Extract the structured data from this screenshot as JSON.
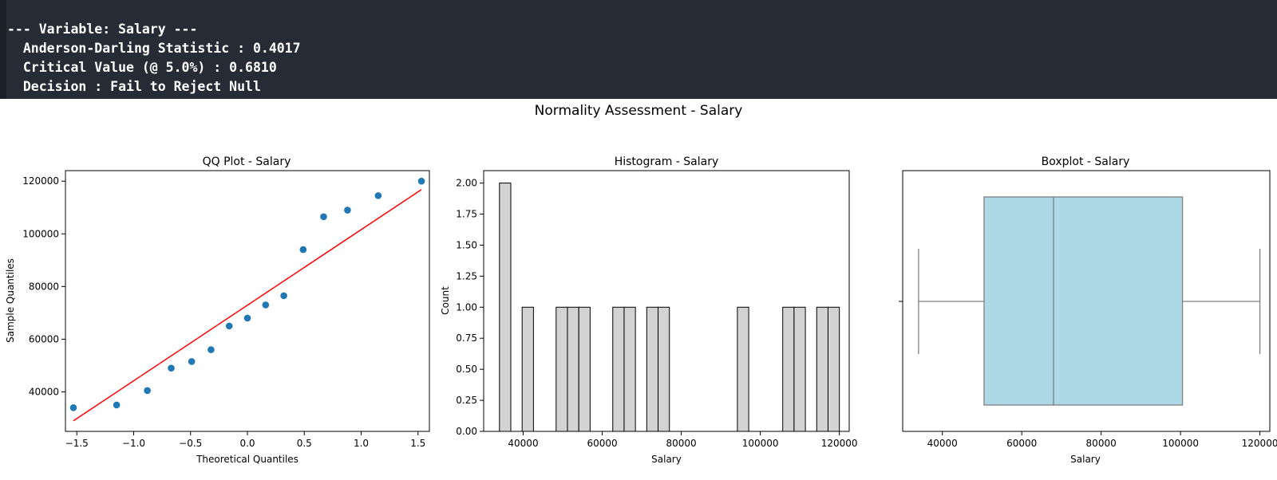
{
  "console": {
    "lines": [
      "--- Variable: Salary ---",
      "  Anderson-Darling Statistic : 0.4017",
      "  Critical Value (@ 5.0%) : 0.6810",
      "  Decision : Fail to Reject Null"
    ]
  },
  "figure": {
    "suptitle": "Normality Assessment - Salary"
  },
  "colors": {
    "qq_points": "#1f77b4",
    "qq_line": "#ff0000",
    "hist_fill": "#d3d3d3",
    "box_fill": "#add8e6",
    "box_line": "#808080",
    "console_bg": "#262b35"
  },
  "chart_data": [
    {
      "type": "scatter",
      "title": "QQ Plot - Salary",
      "xlabel": "Theoretical Quantiles",
      "ylabel": "Sample Quantiles",
      "xlim": [
        -1.6,
        1.6
      ],
      "ylim": [
        25000,
        124000
      ],
      "xticks": [
        -1.5,
        -1.0,
        -0.5,
        0.0,
        0.5,
        1.0,
        1.5
      ],
      "xtick_labels": [
        "−1.5",
        "−1.0",
        "−0.5",
        "0.0",
        "0.5",
        "1.0",
        "1.5"
      ],
      "yticks": [
        40000,
        60000,
        80000,
        100000,
        120000
      ],
      "ytick_labels": [
        "40000",
        "60000",
        "80000",
        "100000",
        "120000"
      ],
      "points": [
        {
          "x": -1.53,
          "y": 34000
        },
        {
          "x": -1.15,
          "y": 35000
        },
        {
          "x": -0.88,
          "y": 40500
        },
        {
          "x": -0.67,
          "y": 49000
        },
        {
          "x": -0.49,
          "y": 51500
        },
        {
          "x": -0.32,
          "y": 56000
        },
        {
          "x": -0.16,
          "y": 65000
        },
        {
          "x": 0.0,
          "y": 68000
        },
        {
          "x": 0.16,
          "y": 73000
        },
        {
          "x": 0.32,
          "y": 76500
        },
        {
          "x": 0.49,
          "y": 94000
        },
        {
          "x": 0.67,
          "y": 106500
        },
        {
          "x": 0.88,
          "y": 109000
        },
        {
          "x": 1.15,
          "y": 114500
        },
        {
          "x": 1.53,
          "y": 120000
        }
      ],
      "fit_line": {
        "x": [
          -1.53,
          1.53
        ],
        "y": [
          29000,
          116800
        ]
      }
    },
    {
      "type": "bar",
      "title": "Histogram - Salary",
      "xlabel": "Salary",
      "ylabel": "Count",
      "xlim": [
        30000,
        122500
      ],
      "ylim": [
        0,
        2.1
      ],
      "xticks": [
        40000,
        60000,
        80000,
        100000,
        120000
      ],
      "xtick_labels": [
        "40000",
        "60000",
        "80000",
        "100000",
        "120000"
      ],
      "yticks": [
        0,
        0.25,
        0.5,
        0.75,
        1.0,
        1.25,
        1.5,
        1.75,
        2.0
      ],
      "ytick_labels": [
        "0.00",
        "0.25",
        "0.50",
        "0.75",
        "1.00",
        "1.25",
        "1.50",
        "1.75",
        "2.00"
      ],
      "bin_start": 34000,
      "bin_width": 2867,
      "counts": [
        2,
        0,
        1,
        0,
        0,
        1,
        1,
        1,
        0,
        0,
        1,
        1,
        0,
        1,
        1,
        0,
        0,
        0,
        0,
        0,
        0,
        1,
        0,
        0,
        0,
        1,
        1,
        0,
        1,
        1
      ]
    },
    {
      "type": "box",
      "title": "Boxplot - Salary",
      "xlabel": "Salary",
      "xlim": [
        30000,
        122500
      ],
      "xticks": [
        40000,
        60000,
        80000,
        100000,
        120000
      ],
      "xtick_labels": [
        "40000",
        "60000",
        "80000",
        "100000",
        "120000"
      ],
      "min": 34000,
      "q1": 50500,
      "median": 68000,
      "q3": 100500,
      "max": 120000
    }
  ]
}
